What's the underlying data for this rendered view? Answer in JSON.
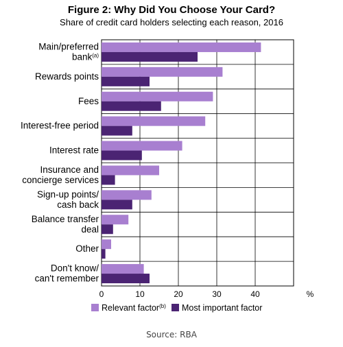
{
  "chart_data": {
    "type": "bar",
    "orientation": "horizontal",
    "title": "Figure 2: Why Did You Choose Your Card?",
    "subtitle": "Share of credit card holders selecting each reason, 2016",
    "categories": [
      {
        "lines": [
          "Main/preferred",
          "bank"
        ],
        "superscript": "(a)"
      },
      {
        "lines": [
          "Rewards points"
        ]
      },
      {
        "lines": [
          "Fees"
        ]
      },
      {
        "lines": [
          "Interest-free period"
        ]
      },
      {
        "lines": [
          "Interest rate"
        ]
      },
      {
        "lines": [
          "Insurance and",
          "concierge services"
        ]
      },
      {
        "lines": [
          "Sign-up points/",
          "cash back"
        ]
      },
      {
        "lines": [
          "Balance transfer",
          "deal"
        ]
      },
      {
        "lines": [
          "Other"
        ]
      },
      {
        "lines": [
          "Don't know/",
          "can't remember"
        ]
      }
    ],
    "series": [
      {
        "name": "Relevant factor",
        "superscript": "(b)",
        "color": "#a87fd0",
        "values": [
          41.5,
          31.5,
          29,
          27,
          21,
          15,
          13,
          7,
          2.5,
          11
        ]
      },
      {
        "name": "Most important factor",
        "color": "#4b2473",
        "values": [
          25,
          12.5,
          15.5,
          8,
          10.5,
          3.5,
          8,
          3,
          1,
          12.5
        ]
      }
    ],
    "xlim": [
      0,
      50
    ],
    "xticks": [
      "0",
      "10",
      "20",
      "30",
      "40"
    ],
    "x_unit_label": "%",
    "grid": true,
    "legend_position": "bottom"
  },
  "source": "Source: RBA"
}
